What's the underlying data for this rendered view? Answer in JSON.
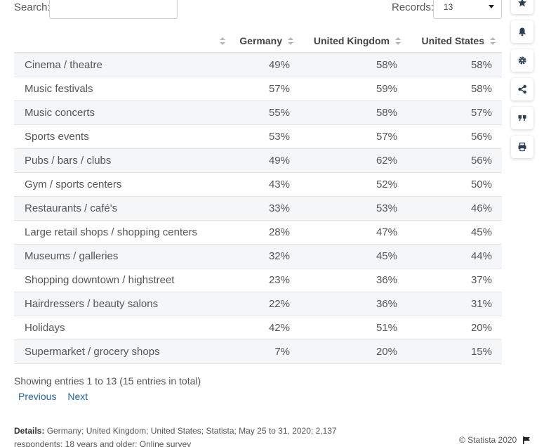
{
  "search": {
    "label": "Search:",
    "value": "",
    "placeholder": ""
  },
  "records": {
    "label": "Records:",
    "value": "13"
  },
  "table": {
    "headers": [
      "",
      "Germany",
      "United Kingdom",
      "United States"
    ],
    "rows": [
      [
        "Cinema / theatre",
        "49%",
        "58%",
        "58%"
      ],
      [
        "Music festivals",
        "57%",
        "59%",
        "58%"
      ],
      [
        "Music concerts",
        "55%",
        "58%",
        "57%"
      ],
      [
        "Sports events",
        "53%",
        "57%",
        "56%"
      ],
      [
        "Pubs / bars / clubs",
        "49%",
        "62%",
        "56%"
      ],
      [
        "Gym / sports centers",
        "43%",
        "52%",
        "50%"
      ],
      [
        "Restaurants / café's",
        "33%",
        "53%",
        "46%"
      ],
      [
        "Large retail shops / shopping centers",
        "28%",
        "47%",
        "45%"
      ],
      [
        "Museums / galleries",
        "32%",
        "45%",
        "44%"
      ],
      [
        "Shopping downtown / highstreet",
        "23%",
        "36%",
        "37%"
      ],
      [
        "Hairdressers / beauty salons",
        "22%",
        "36%",
        "31%"
      ],
      [
        "Holidays",
        "42%",
        "51%",
        "20%"
      ],
      [
        "Supermarket / grocery shops",
        "7%",
        "20%",
        "15%"
      ]
    ]
  },
  "footer": {
    "entries_text": "Showing entries 1 to 13 (15 entries in total)",
    "previous_label": "Previous",
    "next_label": "Next",
    "details_label": "Details:",
    "details_text": " Germany; United Kingdom; United States; Statista; May 25 to 31, 2020; 2,137 respondents; 18 years and older; Online survey",
    "copyright": "© Statista 2020"
  },
  "sidebar": {
    "icons": [
      "star-icon",
      "bell-icon",
      "gear-icon",
      "share-icon",
      "quote-icon",
      "print-icon"
    ]
  },
  "colors": {
    "link": "#2466a8",
    "stripe": "#f4f6f8",
    "border": "#e3e3e3"
  }
}
